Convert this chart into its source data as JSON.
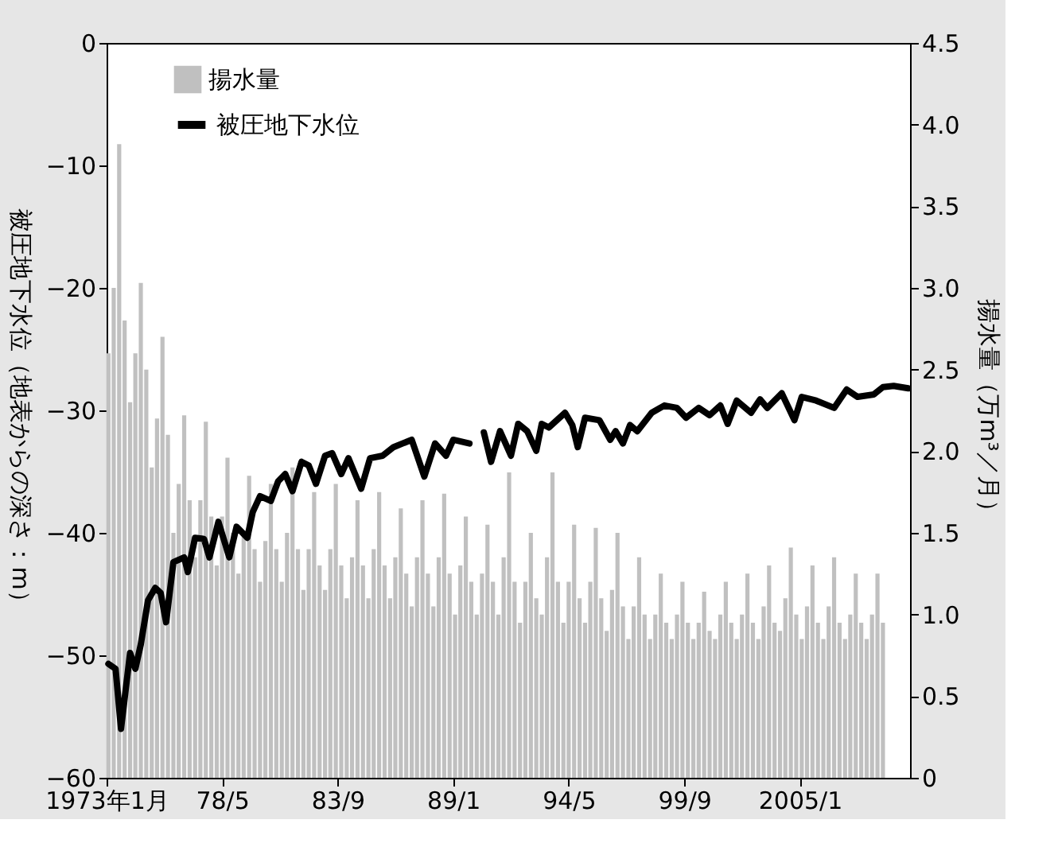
{
  "chart_data": {
    "type": "bar",
    "xlabel": null,
    "ylabel": "被圧地下水位（地表からの深さ：m）",
    "y2label": "揚水量（万m³／月）",
    "xlim": [
      "1973-01",
      "2010-02"
    ],
    "xticks": [
      {
        "value": "1973-01",
        "label": "1973年1月"
      },
      {
        "value": "1978-05",
        "label": "78/5"
      },
      {
        "value": "1983-09",
        "label": "83/9"
      },
      {
        "value": "1989-01",
        "label": "89/1"
      },
      {
        "value": "1994-05",
        "label": "94/5"
      },
      {
        "value": "1999-09",
        "label": "99/9"
      },
      {
        "value": "2005-01",
        "label": "2005/1"
      }
    ],
    "ylim": [
      -60,
      0
    ],
    "yticks": [
      0,
      {
        "value": -10,
        "label": "−10"
      },
      {
        "value": -20,
        "label": "−20"
      },
      {
        "value": -30,
        "label": "−30"
      },
      {
        "value": -40,
        "label": "−40"
      },
      {
        "value": -50,
        "label": "−50"
      },
      {
        "value": -60,
        "label": "−60"
      }
    ],
    "y2lim": [
      0,
      4.5
    ],
    "y2ticks": [
      0,
      0.5,
      {
        "value": 1,
        "label": "1.0"
      },
      1.5,
      {
        "value": 2,
        "label": "2.0"
      },
      2.5,
      {
        "value": 3,
        "label": "3.0"
      },
      3.5,
      {
        "value": 4,
        "label": "4.0"
      },
      4.5
    ],
    "grid": false,
    "legend": "top left",
    "series": [
      {
        "name": "揚水量",
        "axis": "y2",
        "color": "#c0c0c0",
        "x": [
          "1973-02",
          "1973-05",
          "1973-08",
          "1973-11",
          "1974-02",
          "1974-05",
          "1974-08",
          "1974-11",
          "1975-02",
          "1975-05",
          "1975-08",
          "1975-11",
          "1976-02",
          "1976-05",
          "1976-08",
          "1976-11",
          "1977-02",
          "1977-05",
          "1977-08",
          "1977-11",
          "1978-02",
          "1978-05",
          "1978-08",
          "1978-11",
          "1979-02",
          "1979-05",
          "1979-08",
          "1979-11",
          "1980-02",
          "1980-05",
          "1980-08",
          "1980-11",
          "1981-02",
          "1981-05",
          "1981-08",
          "1981-11",
          "1982-02",
          "1982-05",
          "1982-08",
          "1982-11",
          "1983-02",
          "1983-05",
          "1983-08",
          "1983-11",
          "1984-02",
          "1984-05",
          "1984-08",
          "1984-11",
          "1985-02",
          "1985-05",
          "1985-08",
          "1985-11",
          "1986-02",
          "1986-05",
          "1986-08",
          "1986-11",
          "1987-02",
          "1987-05",
          "1987-08",
          "1987-11",
          "1988-02",
          "1988-05",
          "1988-08",
          "1988-11",
          "1989-02",
          "1989-05",
          "1989-08",
          "1989-11",
          "1990-02",
          "1990-05",
          "1990-08",
          "1990-11",
          "1991-02",
          "1991-05",
          "1991-08",
          "1991-11",
          "1992-02",
          "1992-05",
          "1992-08",
          "1992-11",
          "1993-02",
          "1993-05",
          "1993-08",
          "1993-11",
          "1994-02",
          "1994-05",
          "1994-08",
          "1994-11",
          "1995-02",
          "1995-05",
          "1995-08",
          "1995-11",
          "1996-02",
          "1996-05",
          "1996-08",
          "1996-11",
          "1997-02",
          "1997-05",
          "1997-08",
          "1997-11",
          "1998-02",
          "1998-05",
          "1998-08",
          "1998-11",
          "1999-02",
          "1999-05",
          "1999-08",
          "1999-11",
          "2000-02",
          "2000-05",
          "2000-08",
          "2000-11",
          "2001-02",
          "2001-05",
          "2001-08",
          "2001-11",
          "2002-02",
          "2002-05",
          "2002-08",
          "2002-11",
          "2003-02",
          "2003-05",
          "2003-08",
          "2003-11",
          "2004-02",
          "2004-05",
          "2004-08",
          "2004-11",
          "2005-02",
          "2005-05",
          "2005-08",
          "2005-11",
          "2006-02",
          "2006-05",
          "2006-08",
          "2006-11",
          "2007-02",
          "2007-05",
          "2007-08",
          "2007-11",
          "2008-02",
          "2008-05",
          "2008-08",
          "2008-11"
        ],
        "values": [
          2.6,
          3.0,
          3.88,
          2.8,
          2.3,
          2.6,
          3.03,
          2.5,
          1.9,
          2.2,
          2.7,
          2.1,
          1.5,
          1.8,
          2.22,
          1.7,
          1.35,
          1.7,
          2.18,
          1.6,
          1.3,
          1.6,
          1.96,
          1.5,
          1.25,
          1.5,
          1.85,
          1.4,
          1.2,
          1.45,
          1.8,
          1.4,
          1.2,
          1.5,
          1.9,
          1.4,
          1.15,
          1.4,
          1.75,
          1.3,
          1.15,
          1.4,
          1.8,
          1.3,
          1.1,
          1.35,
          1.7,
          1.3,
          1.1,
          1.4,
          1.75,
          1.3,
          1.1,
          1.35,
          1.65,
          1.25,
          1.05,
          1.35,
          1.7,
          1.25,
          1.05,
          1.35,
          1.74,
          1.25,
          1.0,
          1.3,
          1.6,
          1.2,
          1.0,
          1.25,
          1.55,
          1.2,
          1.0,
          1.35,
          1.87,
          1.2,
          0.95,
          1.2,
          1.5,
          1.1,
          1.0,
          1.35,
          1.87,
          1.2,
          0.95,
          1.2,
          1.55,
          1.1,
          0.95,
          1.2,
          1.53,
          1.1,
          0.9,
          1.15,
          1.5,
          1.05,
          0.85,
          1.05,
          1.35,
          1.0,
          0.85,
          1.0,
          1.25,
          0.95,
          0.85,
          1.0,
          1.2,
          0.95,
          0.85,
          0.95,
          1.14,
          0.9,
          0.85,
          1.0,
          1.2,
          0.95,
          0.85,
          1.0,
          1.25,
          0.95,
          0.85,
          1.05,
          1.3,
          0.95,
          0.9,
          1.1,
          1.41,
          1.0,
          0.85,
          1.05,
          1.3,
          0.95,
          0.85,
          1.05,
          1.35,
          0.95,
          0.85,
          1.0,
          1.25,
          0.95,
          0.85,
          1.0,
          1.25,
          0.95
        ]
      },
      {
        "name": "被圧地下水位",
        "type": "line",
        "axis": "y",
        "color": "#000000",
        "line_style": "solid",
        "marker": "none",
        "x": [
          "1973-02",
          "1973-06",
          "1973-09",
          "1974-02",
          "1974-05",
          "1974-08",
          "1974-12",
          "1975-04",
          "1975-07",
          "1975-10",
          "1976-02",
          "1976-08",
          "1976-10",
          "1977-02",
          "1977-07",
          "1977-10",
          "1978-03",
          "1978-09",
          "1979-01",
          "1979-07",
          "1979-10",
          "1980-02",
          "1980-08",
          "1980-12",
          "1981-04",
          "1981-08",
          "1982-01",
          "1982-05",
          "1982-09",
          "1983-02",
          "1983-06",
          "1983-11",
          "1984-03",
          "1984-10",
          "1985-03",
          "1985-10",
          "1986-04",
          "1987-02",
          "1987-09",
          "1988-03",
          "1988-09",
          "1989-01",
          "1989-10",
          "1990-03",
          "1990-06",
          "1990-10",
          "1991-03",
          "1991-09",
          "1992-01",
          "1992-06",
          "1992-11",
          "1993-02",
          "1993-06",
          "1994-03",
          "1994-07",
          "1994-10",
          "1995-02",
          "1995-10",
          "1996-04",
          "1996-07",
          "1996-11",
          "1997-03",
          "1997-07",
          "1998-03",
          "1998-10",
          "1999-05",
          "1999-10",
          "2000-05",
          "2000-11",
          "2001-05",
          "2001-09",
          "2002-02",
          "2002-10",
          "2003-03",
          "2003-07",
          "2004-03",
          "2004-10",
          "2005-02",
          "2005-10",
          "2006-08",
          "2007-03",
          "2007-09",
          "2008-06",
          "2008-11",
          "2009-05",
          "2010-01"
        ],
        "values": [
          -50.7,
          -51.1,
          -56.0,
          -49.8,
          -51.1,
          -49.1,
          -45.5,
          -44.5,
          -44.9,
          -47.3,
          -42.4,
          -42.0,
          -43.2,
          -40.4,
          -40.5,
          -42.0,
          -39.1,
          -42.0,
          -39.5,
          -40.4,
          -38.3,
          -37.0,
          -37.4,
          -35.8,
          -35.2,
          -36.6,
          -34.2,
          -34.5,
          -36.0,
          -33.7,
          -33.5,
          -35.2,
          -33.9,
          -36.4,
          -33.9,
          -33.7,
          -33.0,
          -32.4,
          -35.4,
          -32.7,
          -33.7,
          -32.4,
          -32.7,
          null,
          -31.8,
          -34.2,
          -31.7,
          -33.7,
          -31.1,
          -31.7,
          -33.3,
          -31.1,
          -31.4,
          -30.2,
          -31.2,
          -33.0,
          -30.6,
          -30.8,
          -32.4,
          -31.7,
          -32.7,
          -31.2,
          -31.7,
          -30.2,
          -29.6,
          -29.8,
          -30.6,
          -29.8,
          -30.4,
          -29.6,
          -31.1,
          -29.2,
          -30.2,
          -29.1,
          -29.8,
          -28.6,
          -30.8,
          -28.9,
          -29.2,
          -29.8,
          -28.3,
          -28.9,
          -28.7,
          -28.1,
          -28.0,
          -28.2
        ]
      }
    ]
  }
}
